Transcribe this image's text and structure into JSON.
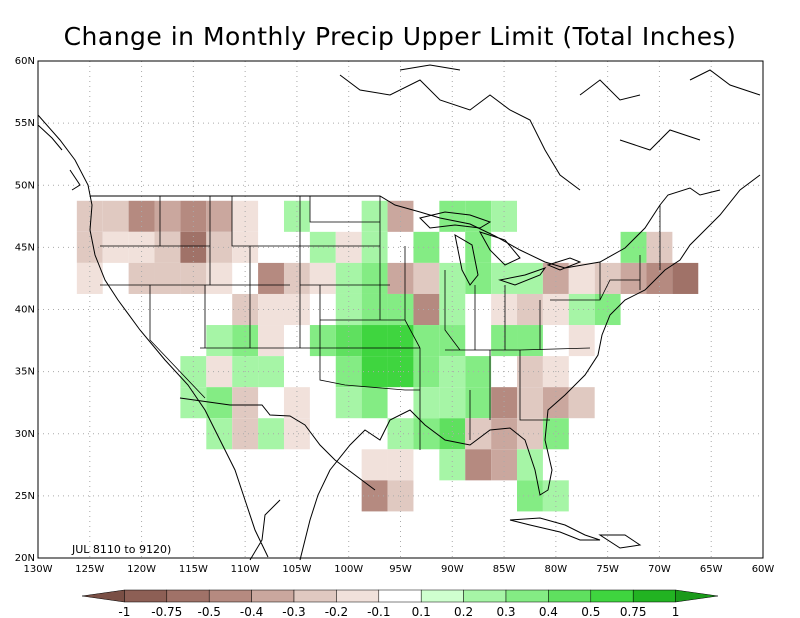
{
  "title": "Change in Monthly Precip Upper Limit (Total Inches)",
  "period_label": "JUL 8110 to 9120)",
  "lat_ticks": [
    "60N",
    "55N",
    "50N",
    "45N",
    "40N",
    "35N",
    "30N",
    "25N",
    "20N"
  ],
  "lon_ticks": [
    "130W",
    "125W",
    "120W",
    "115W",
    "110W",
    "105W",
    "100W",
    "95W",
    "90W",
    "85W",
    "80W",
    "75W",
    "70W",
    "65W",
    "60W"
  ],
  "colorbar": {
    "labels": [
      "-1",
      "-0.75",
      "-0.5",
      "-0.4",
      "-0.3",
      "-0.2",
      "-0.1",
      "0.1",
      "0.2",
      "0.3",
      "0.4",
      "0.5",
      "0.75",
      "1"
    ],
    "colors": [
      "#7a4f45",
      "#8d5f55",
      "#a07268",
      "#b58a80",
      "#caa79e",
      "#e0c9c1",
      "#f1e1db",
      "#ffffff",
      "#cfffcf",
      "#a6f5a6",
      "#84ec84",
      "#5fe05f",
      "#3fd53f",
      "#22b322",
      "#1a9a1a"
    ]
  },
  "chart_data": {
    "type": "heatmap",
    "title": "Change in Monthly Precip Upper Limit (Total Inches)",
    "units": "inches",
    "xlim": [
      -130,
      -60
    ],
    "ylim": [
      20,
      60
    ],
    "grid": true,
    "cell_deg": 2.5,
    "cells": [
      {
        "lon": -125,
        "lat": 47.5,
        "v": -0.3
      },
      {
        "lon": -122.5,
        "lat": 47.5,
        "v": -0.3
      },
      {
        "lon": -120,
        "lat": 47.5,
        "v": -0.5
      },
      {
        "lon": -117.5,
        "lat": 47.5,
        "v": -0.4
      },
      {
        "lon": -115,
        "lat": 47.5,
        "v": -0.5
      },
      {
        "lon": -112.5,
        "lat": 47.5,
        "v": -0.4
      },
      {
        "lon": -110,
        "lat": 47.5,
        "v": -0.2
      },
      {
        "lon": -105,
        "lat": 47.5,
        "v": 0.2
      },
      {
        "lon": -97.5,
        "lat": 47.5,
        "v": 0.2
      },
      {
        "lon": -95,
        "lat": 47.5,
        "v": -0.4
      },
      {
        "lon": -90,
        "lat": 47.5,
        "v": 0.3
      },
      {
        "lon": -87.5,
        "lat": 47.5,
        "v": 0.3
      },
      {
        "lon": -85,
        "lat": 47.5,
        "v": 0.2
      },
      {
        "lon": -125,
        "lat": 45,
        "v": -0.3
      },
      {
        "lon": -122.5,
        "lat": 45,
        "v": -0.2
      },
      {
        "lon": -120,
        "lat": 45,
        "v": -0.2
      },
      {
        "lon": -117.5,
        "lat": 45,
        "v": -0.3
      },
      {
        "lon": -115,
        "lat": 45,
        "v": -0.75
      },
      {
        "lon": -112.5,
        "lat": 45,
        "v": -0.3
      },
      {
        "lon": -110,
        "lat": 45,
        "v": -0.2
      },
      {
        "lon": -102.5,
        "lat": 45,
        "v": 0.2
      },
      {
        "lon": -100,
        "lat": 45,
        "v": -0.2
      },
      {
        "lon": -97.5,
        "lat": 45,
        "v": 0.2
      },
      {
        "lon": -92.5,
        "lat": 45,
        "v": 0.3
      },
      {
        "lon": -87.5,
        "lat": 45,
        "v": 0.3
      },
      {
        "lon": -72.5,
        "lat": 45,
        "v": 0.3
      },
      {
        "lon": -70,
        "lat": 45,
        "v": -0.3
      },
      {
        "lon": -125,
        "lat": 42.5,
        "v": -0.2
      },
      {
        "lon": -120,
        "lat": 42.5,
        "v": -0.3
      },
      {
        "lon": -117.5,
        "lat": 42.5,
        "v": -0.3
      },
      {
        "lon": -115,
        "lat": 42.5,
        "v": -0.3
      },
      {
        "lon": -112.5,
        "lat": 42.5,
        "v": -0.2
      },
      {
        "lon": -107.5,
        "lat": 42.5,
        "v": -0.5
      },
      {
        "lon": -105,
        "lat": 42.5,
        "v": -0.3
      },
      {
        "lon": -102.5,
        "lat": 42.5,
        "v": -0.2
      },
      {
        "lon": -100,
        "lat": 42.5,
        "v": 0.2
      },
      {
        "lon": -97.5,
        "lat": 42.5,
        "v": 0.3
      },
      {
        "lon": -95,
        "lat": 42.5,
        "v": -0.4
      },
      {
        "lon": -92.5,
        "lat": 42.5,
        "v": -0.3
      },
      {
        "lon": -90,
        "lat": 42.5,
        "v": 0.2
      },
      {
        "lon": -87.5,
        "lat": 42.5,
        "v": 0.3
      },
      {
        "lon": -85,
        "lat": 42.5,
        "v": 0.2
      },
      {
        "lon": -82.5,
        "lat": 42.5,
        "v": 0.2
      },
      {
        "lon": -80,
        "lat": 42.5,
        "v": -0.4
      },
      {
        "lon": -77.5,
        "lat": 42.5,
        "v": -0.2
      },
      {
        "lon": -75,
        "lat": 42.5,
        "v": -0.3
      },
      {
        "lon": -72.5,
        "lat": 42.5,
        "v": -0.4
      },
      {
        "lon": -70,
        "lat": 42.5,
        "v": -0.5
      },
      {
        "lon": -67.5,
        "lat": 42.5,
        "v": -0.75
      },
      {
        "lon": -110,
        "lat": 40,
        "v": -0.3
      },
      {
        "lon": -107.5,
        "lat": 40,
        "v": -0.2
      },
      {
        "lon": -105,
        "lat": 40,
        "v": -0.2
      },
      {
        "lon": -100,
        "lat": 40,
        "v": 0.2
      },
      {
        "lon": -97.5,
        "lat": 40,
        "v": 0.3
      },
      {
        "lon": -95,
        "lat": 40,
        "v": 0.3
      },
      {
        "lon": -92.5,
        "lat": 40,
        "v": -0.5
      },
      {
        "lon": -90,
        "lat": 40,
        "v": 0.2
      },
      {
        "lon": -85,
        "lat": 40,
        "v": -0.2
      },
      {
        "lon": -82.5,
        "lat": 40,
        "v": -0.3
      },
      {
        "lon": -80,
        "lat": 40,
        "v": -0.2
      },
      {
        "lon": -77.5,
        "lat": 40,
        "v": 0.2
      },
      {
        "lon": -75,
        "lat": 40,
        "v": 0.3
      },
      {
        "lon": -112.5,
        "lat": 37.5,
        "v": 0.2
      },
      {
        "lon": -110,
        "lat": 37.5,
        "v": 0.3
      },
      {
        "lon": -107.5,
        "lat": 37.5,
        "v": -0.2
      },
      {
        "lon": -102.5,
        "lat": 37.5,
        "v": 0.3
      },
      {
        "lon": -100,
        "lat": 37.5,
        "v": 0.4
      },
      {
        "lon": -97.5,
        "lat": 37.5,
        "v": 0.5
      },
      {
        "lon": -95,
        "lat": 37.5,
        "v": 0.5
      },
      {
        "lon": -92.5,
        "lat": 37.5,
        "v": 0.3
      },
      {
        "lon": -90,
        "lat": 37.5,
        "v": 0.3
      },
      {
        "lon": -85,
        "lat": 37.5,
        "v": 0.3
      },
      {
        "lon": -82.5,
        "lat": 37.5,
        "v": 0.3
      },
      {
        "lon": -77.5,
        "lat": 37.5,
        "v": -0.2
      },
      {
        "lon": -115,
        "lat": 35,
        "v": 0.2
      },
      {
        "lon": -112.5,
        "lat": 35,
        "v": -0.2
      },
      {
        "lon": -110,
        "lat": 35,
        "v": 0.2
      },
      {
        "lon": -107.5,
        "lat": 35,
        "v": 0.2
      },
      {
        "lon": -100,
        "lat": 35,
        "v": 0.3
      },
      {
        "lon": -97.5,
        "lat": 35,
        "v": 0.5
      },
      {
        "lon": -95,
        "lat": 35,
        "v": 0.5
      },
      {
        "lon": -92.5,
        "lat": 35,
        "v": 0.3
      },
      {
        "lon": -90,
        "lat": 35,
        "v": 0.2
      },
      {
        "lon": -87.5,
        "lat": 35,
        "v": 0.3
      },
      {
        "lon": -82.5,
        "lat": 35,
        "v": -0.3
      },
      {
        "lon": -80,
        "lat": 35,
        "v": -0.2
      },
      {
        "lon": -115,
        "lat": 32.5,
        "v": 0.2
      },
      {
        "lon": -112.5,
        "lat": 32.5,
        "v": 0.3
      },
      {
        "lon": -110,
        "lat": 32.5,
        "v": -0.3
      },
      {
        "lon": -105,
        "lat": 32.5,
        "v": -0.2
      },
      {
        "lon": -100,
        "lat": 32.5,
        "v": 0.2
      },
      {
        "lon": -97.5,
        "lat": 32.5,
        "v": 0.3
      },
      {
        "lon": -92.5,
        "lat": 32.5,
        "v": 0.2
      },
      {
        "lon": -90,
        "lat": 32.5,
        "v": 0.2
      },
      {
        "lon": -87.5,
        "lat": 32.5,
        "v": 0.3
      },
      {
        "lon": -85,
        "lat": 32.5,
        "v": -0.5
      },
      {
        "lon": -82.5,
        "lat": 32.5,
        "v": -0.3
      },
      {
        "lon": -80,
        "lat": 32.5,
        "v": -0.4
      },
      {
        "lon": -77.5,
        "lat": 32.5,
        "v": -0.3
      },
      {
        "lon": -112.5,
        "lat": 30,
        "v": 0.2
      },
      {
        "lon": -110,
        "lat": 30,
        "v": -0.3
      },
      {
        "lon": -107.5,
        "lat": 30,
        "v": 0.2
      },
      {
        "lon": -105,
        "lat": 30,
        "v": -0.2
      },
      {
        "lon": -95,
        "lat": 30,
        "v": 0.2
      },
      {
        "lon": -92.5,
        "lat": 30,
        "v": 0.3
      },
      {
        "lon": -90,
        "lat": 30,
        "v": 0.4
      },
      {
        "lon": -87.5,
        "lat": 30,
        "v": -0.3
      },
      {
        "lon": -85,
        "lat": 30,
        "v": -0.4
      },
      {
        "lon": -82.5,
        "lat": 30,
        "v": -0.3
      },
      {
        "lon": -80,
        "lat": 30,
        "v": 0.3
      },
      {
        "lon": -97.5,
        "lat": 27.5,
        "v": -0.2
      },
      {
        "lon": -95,
        "lat": 27.5,
        "v": -0.2
      },
      {
        "lon": -90,
        "lat": 27.5,
        "v": 0.2
      },
      {
        "lon": -87.5,
        "lat": 27.5,
        "v": -0.5
      },
      {
        "lon": -85,
        "lat": 27.5,
        "v": -0.4
      },
      {
        "lon": -82.5,
        "lat": 27.5,
        "v": 0.2
      },
      {
        "lon": -97.5,
        "lat": 25,
        "v": -0.5
      },
      {
        "lon": -95,
        "lat": 25,
        "v": -0.3
      },
      {
        "lon": -82.5,
        "lat": 25,
        "v": 0.3
      },
      {
        "lon": -80,
        "lat": 25,
        "v": 0.2
      }
    ]
  }
}
